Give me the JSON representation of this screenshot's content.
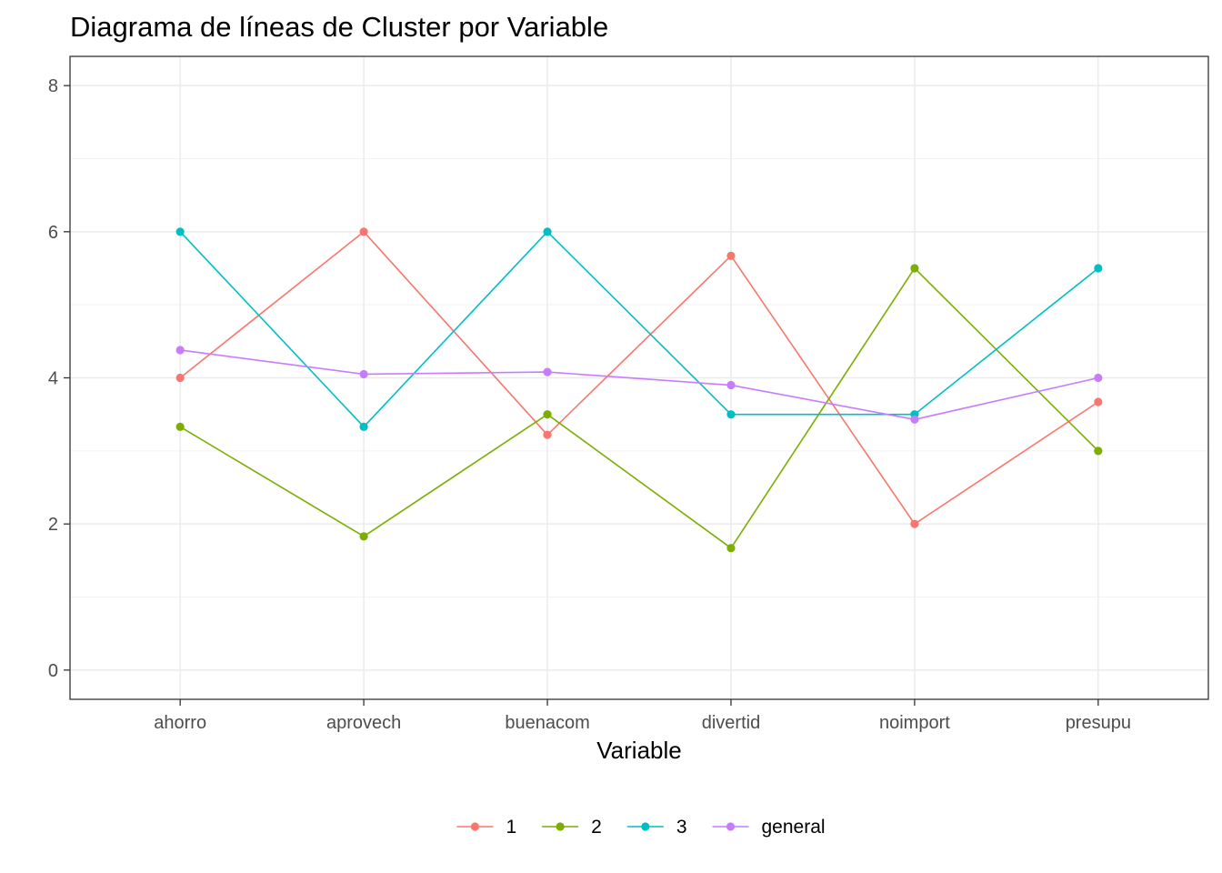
{
  "chart_data": {
    "type": "line",
    "title": "Diagrama de líneas de Cluster por Variable",
    "xlabel": "Variable",
    "ylabel": "",
    "categories": [
      "ahorro",
      "aprovech",
      "buenacom",
      "divertid",
      "noimport",
      "presupu"
    ],
    "ylim": [
      -0.4,
      8.4
    ],
    "yticks": [
      0,
      2,
      4,
      6,
      8
    ],
    "grid": true,
    "legend_position": "bottom",
    "series": [
      {
        "name": "1",
        "color": "#F8766D",
        "values": [
          4.0,
          6.0,
          3.22,
          5.67,
          2.0,
          3.67
        ]
      },
      {
        "name": "2",
        "color": "#7CAE00",
        "values": [
          3.33,
          1.83,
          3.5,
          1.67,
          5.5,
          3.0
        ]
      },
      {
        "name": "3",
        "color": "#00BFC4",
        "values": [
          6.0,
          3.33,
          6.0,
          3.5,
          3.5,
          5.5
        ]
      },
      {
        "name": "general",
        "color": "#C77CFF",
        "values": [
          4.38,
          4.05,
          4.08,
          3.9,
          3.43,
          4.0
        ]
      }
    ]
  }
}
